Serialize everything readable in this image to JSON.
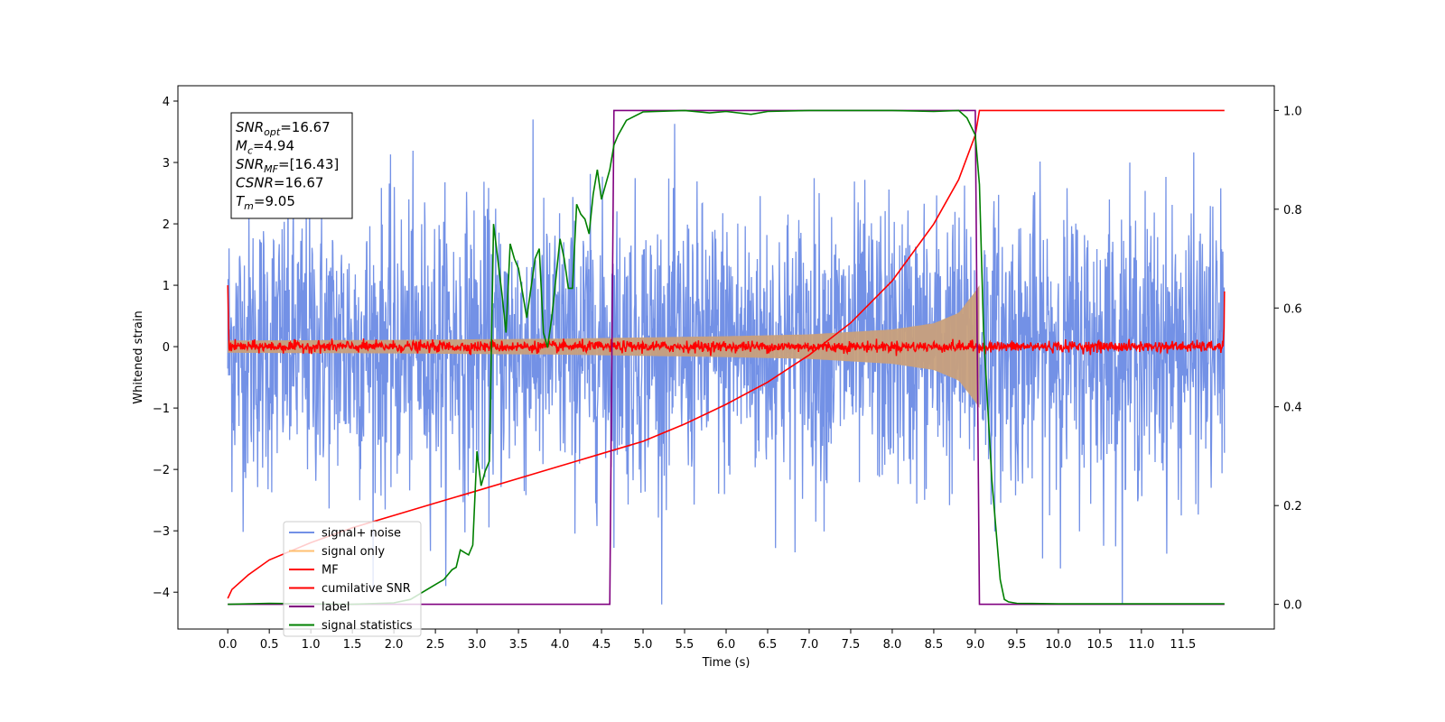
{
  "chart_data": {
    "type": "line",
    "xlabel": "Time (s)",
    "ylabel": "Whitened strain",
    "xlim": [
      -0.6,
      12.6
    ],
    "ylim": [
      -4.6,
      4.25
    ],
    "ylim_right": [
      -0.05,
      1.05
    ],
    "x_ticks": [
      "0.0",
      "0.5",
      "1.0",
      "1.5",
      "2.0",
      "2.5",
      "3.0",
      "3.5",
      "4.0",
      "4.5",
      "5.0",
      "5.5",
      "6.0",
      "6.5",
      "7.0",
      "7.5",
      "8.0",
      "8.5",
      "9.0",
      "9.5",
      "10.0",
      "10.5",
      "11.0",
      "11.5"
    ],
    "y_ticks_left": [
      "4",
      "3",
      "2",
      "1",
      "0",
      "−1",
      "−2",
      "−3",
      "−4"
    ],
    "y_ticks_right": [
      "1.0",
      "0.8",
      "0.6",
      "0.4",
      "0.2",
      "0.0"
    ],
    "grid": false,
    "legend_position": "lower-left",
    "annotation": {
      "lines": [
        {
          "main": "SNR",
          "sub": "opt",
          "rest": "=16.67"
        },
        {
          "main": "M",
          "sub": "c",
          "rest": "=4.94"
        },
        {
          "main": "SNR",
          "sub": "MF",
          "rest": "=[16.43]"
        },
        {
          "main": "CSNR",
          "sub": "",
          "rest": "=16.67"
        },
        {
          "main": "T",
          "sub": "m",
          "rest": "=9.05"
        }
      ]
    },
    "series": [
      {
        "name": "signal+ noise",
        "axis": "left",
        "color": "#7391e6",
        "style": "noise band, roughly ±1.5 with peaks to ±3.7"
      },
      {
        "name": "signal only",
        "axis": "left",
        "color": "#ffbf70",
        "envelope": {
          "t": [
            0,
            2,
            4,
            6,
            7,
            8,
            8.5,
            8.8,
            9.0,
            9.05
          ],
          "amp": [
            0.1,
            0.11,
            0.13,
            0.17,
            0.2,
            0.28,
            0.38,
            0.55,
            0.9,
            1.0
          ]
        }
      },
      {
        "name": "MF",
        "axis": "left",
        "color": "#ff0000",
        "style": "noisy trace around 0, ±0.1, edge spikes to 1.0 and 0.9"
      },
      {
        "name": "cumilative SNR",
        "axis": "right",
        "color": "#ff0000",
        "x": [
          0,
          0.05,
          0.25,
          0.5,
          1,
          1.5,
          2,
          2.5,
          3,
          3.5,
          4,
          4.5,
          5,
          5.5,
          6,
          6.5,
          7,
          7.5,
          8,
          8.5,
          8.8,
          9,
          9.05,
          9.1,
          12
        ],
        "y": [
          0.012,
          0.03,
          0.06,
          0.09,
          0.125,
          0.155,
          0.18,
          0.205,
          0.23,
          0.255,
          0.28,
          0.305,
          0.33,
          0.365,
          0.405,
          0.45,
          0.505,
          0.57,
          0.655,
          0.77,
          0.86,
          0.95,
          1.0,
          1.0,
          1.0
        ]
      },
      {
        "name": "label",
        "axis": "right",
        "color": "#800080",
        "x": [
          0,
          4.6,
          4.65,
          9.0,
          9.05,
          12
        ],
        "y": [
          0,
          0,
          1,
          1,
          0,
          0
        ]
      },
      {
        "name": "signal statistics",
        "axis": "right",
        "color": "#008000",
        "x": [
          0,
          0.5,
          1,
          1.5,
          2,
          2.2,
          2.5,
          2.6,
          2.7,
          2.75,
          2.8,
          2.9,
          2.95,
          3.0,
          3.05,
          3.1,
          3.15,
          3.2,
          3.3,
          3.35,
          3.4,
          3.45,
          3.5,
          3.6,
          3.7,
          3.75,
          3.8,
          3.85,
          3.9,
          4.0,
          4.05,
          4.1,
          4.15,
          4.2,
          4.25,
          4.3,
          4.35,
          4.4,
          4.45,
          4.5,
          4.55,
          4.6,
          4.65,
          4.7,
          4.8,
          5.0,
          5.5,
          5.8,
          6.0,
          6.3,
          6.5,
          7,
          7.5,
          8.0,
          8.5,
          8.8,
          8.9,
          9.0,
          9.05,
          9.1,
          9.2,
          9.3,
          9.35,
          9.4,
          9.5,
          10,
          11,
          12
        ],
        "y": [
          0,
          0.002,
          0.001,
          0,
          0.003,
          0.01,
          0.04,
          0.05,
          0.07,
          0.075,
          0.11,
          0.1,
          0.12,
          0.31,
          0.24,
          0.27,
          0.29,
          0.77,
          0.63,
          0.55,
          0.73,
          0.7,
          0.68,
          0.58,
          0.7,
          0.72,
          0.55,
          0.52,
          0.58,
          0.74,
          0.7,
          0.64,
          0.64,
          0.81,
          0.79,
          0.78,
          0.75,
          0.83,
          0.88,
          0.82,
          0.85,
          0.88,
          0.93,
          0.95,
          0.98,
          0.997,
          1.0,
          0.995,
          0.998,
          0.992,
          0.998,
          1.0,
          1.0,
          1.0,
          0.998,
          1.0,
          0.985,
          0.95,
          0.85,
          0.55,
          0.25,
          0.05,
          0.01,
          0.005,
          0.002,
          0.001,
          0.001,
          0.001
        ]
      }
    ]
  }
}
